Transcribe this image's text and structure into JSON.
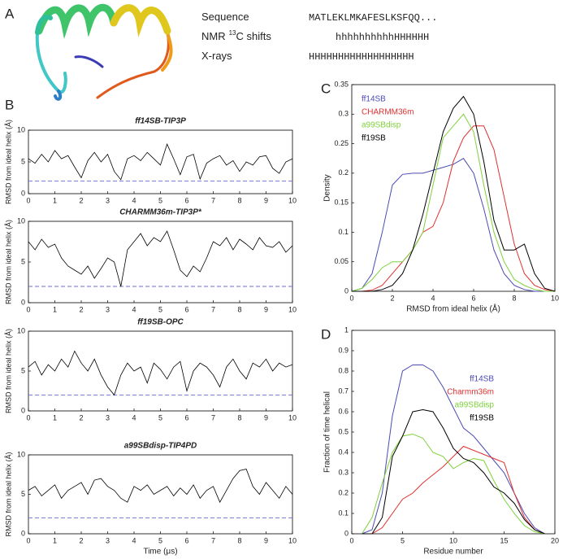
{
  "panel_a": {
    "label": "A",
    "rows": [
      {
        "label": "Sequence",
        "value": "MATLEKLMKAFESLKSFQQ..."
      },
      {
        "label": "NMR",
        "label_superscript": "13",
        "label_suffix": "C shifts",
        "value": "hhhhhhhhhhHHHHHH"
      },
      {
        "label": "X-rays",
        "value": "HHHHHHHHHHHHHHHHHH"
      }
    ]
  },
  "chart_data": [
    {
      "type": "line",
      "panel": "B",
      "title": "ff14SB-TIP3P",
      "ylabel": "RMSD from ideal helix (Å)",
      "color": "#000000",
      "x": [
        0,
        0.25,
        0.5,
        0.75,
        1,
        1.25,
        1.5,
        1.75,
        2,
        2.25,
        2.5,
        2.75,
        3,
        3.25,
        3.5,
        3.75,
        4,
        4.25,
        4.5,
        4.75,
        5,
        5.25,
        5.5,
        5.75,
        6,
        6.25,
        6.5,
        6.75,
        7,
        7.25,
        7.5,
        7.75,
        8,
        8.25,
        8.5,
        8.75,
        9,
        9.25,
        9.5,
        9.75,
        10
      ],
      "values": [
        5.5,
        4.8,
        6.2,
        5.0,
        6.8,
        5.5,
        6.0,
        4.2,
        2.5,
        5.2,
        6.5,
        5.0,
        6.2,
        3.5,
        2.2,
        5.5,
        6.0,
        5.2,
        6.5,
        5.5,
        4.5,
        7.8,
        5.5,
        3.0,
        5.8,
        6.2,
        2.3,
        4.8,
        5.5,
        6.0,
        4.5,
        5.2,
        3.5,
        5.0,
        4.5,
        5.8,
        6.0,
        4.0,
        3.2,
        5.0,
        5.5
      ],
      "reference_line": 2,
      "reference_color": "#6b6bdc",
      "xlim": [
        0,
        10
      ],
      "ylim": [
        0,
        10
      ],
      "xticks": [
        0,
        1,
        2,
        3,
        4,
        5,
        6,
        7,
        8,
        9,
        10
      ],
      "yticks": [
        0,
        5,
        10
      ]
    },
    {
      "type": "line",
      "title": "CHARMM36m-TIP3P*",
      "ylabel": "RMSD from ideal helix (Å)",
      "color": "#000000",
      "x": [
        0,
        0.25,
        0.5,
        0.75,
        1,
        1.25,
        1.5,
        1.75,
        2,
        2.25,
        2.5,
        2.75,
        3,
        3.25,
        3.5,
        3.75,
        4,
        4.25,
        4.5,
        4.75,
        5,
        5.25,
        5.5,
        5.75,
        6,
        6.25,
        6.5,
        6.75,
        7,
        7.25,
        7.5,
        7.75,
        8,
        8.25,
        8.5,
        8.75,
        9,
        9.25,
        9.5,
        9.75,
        10
      ],
      "values": [
        7.5,
        6.5,
        7.8,
        6.8,
        7.2,
        5.5,
        4.5,
        4.0,
        3.5,
        4.5,
        3.0,
        4.2,
        5.5,
        5.0,
        2.0,
        6.5,
        7.5,
        8.5,
        7.0,
        8.0,
        7.5,
        8.8,
        6.5,
        4.0,
        3.2,
        4.5,
        3.8,
        5.5,
        7.5,
        7.0,
        8.0,
        6.5,
        7.8,
        7.2,
        6.5,
        8.0,
        7.0,
        6.8,
        7.5,
        6.2,
        7.0
      ],
      "reference_line": 2,
      "reference_color": "#6b6bdc",
      "xlim": [
        0,
        10
      ],
      "ylim": [
        0,
        10
      ],
      "xticks": [
        0,
        1,
        2,
        3,
        4,
        5,
        6,
        7,
        8,
        9,
        10
      ],
      "yticks": [
        0,
        5,
        10
      ]
    },
    {
      "type": "line",
      "title": "ff19SB-OPC",
      "ylabel": "RMSD from ideal helix (Å)",
      "color": "#000000",
      "x": [
        0,
        0.25,
        0.5,
        0.75,
        1,
        1.25,
        1.5,
        1.75,
        2,
        2.25,
        2.5,
        2.75,
        3,
        3.25,
        3.5,
        3.75,
        4,
        4.25,
        4.5,
        4.75,
        5,
        5.25,
        5.5,
        5.75,
        6,
        6.25,
        6.5,
        6.75,
        7,
        7.25,
        7.5,
        7.75,
        8,
        8.25,
        8.5,
        8.75,
        9,
        9.25,
        9.5,
        9.75,
        10
      ],
      "values": [
        5.5,
        6.2,
        4.5,
        5.8,
        5.0,
        6.5,
        5.5,
        7.5,
        6.0,
        5.0,
        6.5,
        4.5,
        3.0,
        2.0,
        4.5,
        6.0,
        5.0,
        5.5,
        3.5,
        6.0,
        5.2,
        4.0,
        5.5,
        6.2,
        2.5,
        5.0,
        6.0,
        5.5,
        4.5,
        3.0,
        5.5,
        6.5,
        5.0,
        4.0,
        6.0,
        5.5,
        6.5,
        5.0,
        6.0,
        5.5,
        5.8
      ],
      "reference_line": 2,
      "reference_color": "#6b6bdc",
      "xlim": [
        0,
        10
      ],
      "ylim": [
        0,
        10
      ],
      "xticks": [
        0,
        1,
        2,
        3,
        4,
        5,
        6,
        7,
        8,
        9,
        10
      ],
      "yticks": [
        0,
        5,
        10
      ]
    },
    {
      "type": "line",
      "title": "a99SBdisp-TIP4PD",
      "ylabel": "RMSD from ideal helix (Å)",
      "xlabel": "Time (μs)",
      "color": "#000000",
      "x": [
        0,
        0.25,
        0.5,
        0.75,
        1,
        1.25,
        1.5,
        1.75,
        2,
        2.25,
        2.5,
        2.75,
        3,
        3.25,
        3.5,
        3.75,
        4,
        4.25,
        4.5,
        4.75,
        5,
        5.25,
        5.5,
        5.75,
        6,
        6.25,
        6.5,
        6.75,
        7,
        7.25,
        7.5,
        7.75,
        8,
        8.25,
        8.5,
        8.75,
        9,
        9.25,
        9.5,
        9.75,
        10
      ],
      "values": [
        5.5,
        6.0,
        4.8,
        5.5,
        6.2,
        4.5,
        5.5,
        6.0,
        6.5,
        5.0,
        6.8,
        7.0,
        6.0,
        5.5,
        4.5,
        4.0,
        6.0,
        5.5,
        6.2,
        5.0,
        5.5,
        6.0,
        4.8,
        5.8,
        5.0,
        6.2,
        4.5,
        5.5,
        6.0,
        4.0,
        5.5,
        7.0,
        8.0,
        8.2,
        6.0,
        5.0,
        6.5,
        5.5,
        4.5,
        6.0,
        5.0
      ],
      "reference_line": 2,
      "reference_color": "#6b6bdc",
      "xlim": [
        0,
        10
      ],
      "ylim": [
        0,
        10
      ],
      "xticks": [
        0,
        1,
        2,
        3,
        4,
        5,
        6,
        7,
        8,
        9,
        10
      ],
      "yticks": [
        0,
        5,
        10
      ]
    },
    {
      "type": "line",
      "panel": "C",
      "xlabel": "RMSD from ideal helix (Å)",
      "ylabel": "Density",
      "legend": "upper left",
      "x": [
        0,
        0.5,
        1,
        1.5,
        2,
        2.5,
        3,
        3.5,
        4,
        4.5,
        5,
        5.5,
        6,
        6.5,
        7,
        7.5,
        8,
        8.5,
        9,
        9.5,
        10
      ],
      "series": [
        {
          "name": "ff14SB",
          "color": "#4b4bb5",
          "values": [
            0,
            0.005,
            0.03,
            0.1,
            0.18,
            0.198,
            0.2,
            0.2,
            0.205,
            0.21,
            0.215,
            0.225,
            0.2,
            0.14,
            0.07,
            0.03,
            0.01,
            0.003,
            0,
            0,
            0
          ]
        },
        {
          "name": "CHARMM36m",
          "color": "#e03030",
          "values": [
            0,
            0,
            0.002,
            0.01,
            0.03,
            0.05,
            0.07,
            0.1,
            0.11,
            0.15,
            0.22,
            0.26,
            0.28,
            0.28,
            0.24,
            0.16,
            0.08,
            0.03,
            0.01,
            0.003,
            0
          ]
        },
        {
          "name": "a99SBdisp",
          "color": "#7fd13b",
          "values": [
            0,
            0.005,
            0.02,
            0.04,
            0.05,
            0.05,
            0.07,
            0.1,
            0.18,
            0.26,
            0.28,
            0.3,
            0.27,
            0.18,
            0.1,
            0.05,
            0.02,
            0.01,
            0.003,
            0,
            0
          ]
        },
        {
          "name": "ff19SB",
          "color": "#000000",
          "values": [
            0,
            0,
            0,
            0.003,
            0.01,
            0.03,
            0.07,
            0.13,
            0.2,
            0.27,
            0.31,
            0.33,
            0.3,
            0.22,
            0.12,
            0.07,
            0.07,
            0.08,
            0.03,
            0.005,
            0
          ]
        }
      ],
      "xlim": [
        0,
        10
      ],
      "ylim": [
        0,
        0.35
      ],
      "xticks": [
        0,
        2,
        4,
        6,
        8,
        10
      ],
      "yticks": [
        0,
        0.05,
        0.1,
        0.15,
        0.2,
        0.25,
        0.3,
        0.35
      ]
    },
    {
      "type": "line",
      "panel": "D",
      "xlabel": "Residue number",
      "ylabel": "Fraction of time helical",
      "legend": "upper right",
      "x": [
        1,
        2,
        3,
        4,
        5,
        6,
        7,
        8,
        9,
        10,
        11,
        12,
        13,
        14,
        15,
        16,
        17,
        18,
        19
      ],
      "series": [
        {
          "name": "ff14SB",
          "color": "#4b4bb5",
          "values": [
            0,
            0.02,
            0.2,
            0.58,
            0.8,
            0.83,
            0.83,
            0.8,
            0.72,
            0.62,
            0.52,
            0.48,
            0.42,
            0.36,
            0.3,
            0.2,
            0.1,
            0.03,
            0
          ]
        },
        {
          "name": "Charmm36m",
          "color": "#e03030",
          "values": [
            0,
            0,
            0.03,
            0.1,
            0.17,
            0.2,
            0.25,
            0.29,
            0.33,
            0.38,
            0.43,
            0.41,
            0.39,
            0.37,
            0.35,
            0.2,
            0.08,
            0.02,
            0
          ]
        },
        {
          "name": "a99SBdisp",
          "color": "#7fd13b",
          "values": [
            0,
            0.08,
            0.25,
            0.4,
            0.48,
            0.49,
            0.47,
            0.4,
            0.38,
            0.32,
            0.35,
            0.37,
            0.36,
            0.26,
            0.17,
            0.1,
            0.04,
            0.01,
            0
          ]
        },
        {
          "name": "ff19SB",
          "color": "#000000",
          "values": [
            0,
            0,
            0.08,
            0.38,
            0.48,
            0.6,
            0.61,
            0.6,
            0.52,
            0.42,
            0.37,
            0.35,
            0.3,
            0.23,
            0.2,
            0.15,
            0.07,
            0.02,
            0
          ]
        }
      ],
      "xlim": [
        0,
        20
      ],
      "ylim": [
        0,
        1
      ],
      "xticks": [
        0,
        5,
        10,
        15,
        20
      ],
      "yticks": [
        0,
        0.1,
        0.2,
        0.3,
        0.4,
        0.5,
        0.6,
        0.7,
        0.8,
        0.9,
        1
      ]
    }
  ]
}
